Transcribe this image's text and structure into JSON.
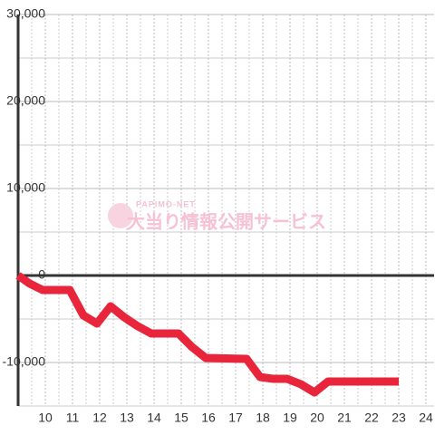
{
  "chart_data": {
    "type": "line",
    "watermark": {
      "brand": "PAPIMO-NET",
      "text": "大当り情報公開サービス"
    },
    "x": [
      9,
      9.43,
      9.9,
      10.9,
      11.4,
      11.9,
      12.4,
      12.9,
      13.4,
      13.9,
      14.9,
      15.4,
      15.9,
      17.4,
      17.9,
      18.4,
      18.9,
      19.4,
      19.9,
      20.4,
      23
    ],
    "series": [
      {
        "color": "#e8253a",
        "values": [
          0,
          -940,
          -1670,
          -1670,
          -4580,
          -5520,
          -3540,
          -4790,
          -5830,
          -6670,
          -6670,
          -8230,
          -9480,
          -9580,
          -11670,
          -11880,
          -11880,
          -12500,
          -13440,
          -12190,
          -12190
        ]
      }
    ],
    "xlim": [
      9,
      24.3
    ],
    "ylim": [
      -15000,
      30000
    ],
    "xticks": [
      10,
      11,
      12,
      13,
      14,
      15,
      16,
      17,
      18,
      19,
      20,
      21,
      22,
      23,
      24
    ],
    "xminorticks": [
      9.5,
      10.5,
      11.5,
      12.5,
      13.5,
      14.5,
      15.5,
      16.5,
      17.5,
      18.5,
      19.5,
      20.5,
      21.5,
      22.5,
      23.5
    ],
    "yticks": [
      {
        "value": -10000,
        "label": "-10,000"
      },
      0,
      {
        "value": 10000,
        "label": "10,000"
      },
      {
        "value": 20000,
        "label": "20,000"
      },
      {
        "value": 30000,
        "label": "30,000"
      }
    ],
    "yminorticks": [
      -15000,
      -5000,
      5000,
      15000,
      25000
    ],
    "grid": true
  }
}
